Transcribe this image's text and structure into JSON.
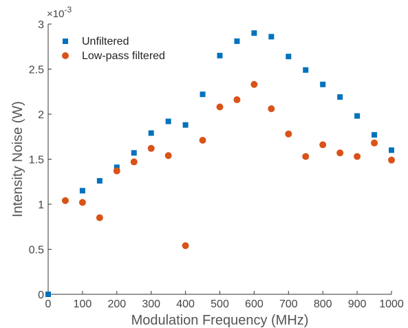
{
  "chart_data": {
    "type": "scatter",
    "xlabel": "Modulation Frequency (MHz)",
    "ylabel": "Intensity Noise (W)",
    "xlim": [
      0,
      1000
    ],
    "ylim": [
      0,
      3
    ],
    "y_exponent_label": "×10",
    "y_exponent_power": "-3",
    "x_ticks": [
      0,
      100,
      200,
      300,
      400,
      500,
      600,
      700,
      800,
      900,
      1000
    ],
    "x_tick_labels": [
      "0",
      "100",
      "200",
      "300",
      "400",
      "500",
      "600",
      "700",
      "800",
      "900",
      "1000"
    ],
    "y_ticks": [
      0,
      0.5,
      1,
      1.5,
      2,
      2.5,
      3
    ],
    "y_tick_labels": [
      "0",
      "0.5",
      "1",
      "1.5",
      "2",
      "2.5",
      "3"
    ],
    "grid": false,
    "legend_position": "top-left",
    "series": [
      {
        "name": "Unfiltered",
        "marker": "square",
        "color": "#0072BD",
        "x": [
          0,
          100,
          150,
          200,
          250,
          300,
          350,
          400,
          450,
          500,
          550,
          600,
          650,
          700,
          750,
          800,
          850,
          900,
          950,
          1000
        ],
        "y": [
          0.0,
          1.15,
          1.26,
          1.41,
          1.57,
          1.79,
          1.92,
          1.88,
          2.22,
          2.65,
          2.81,
          2.9,
          2.86,
          2.64,
          2.49,
          2.33,
          2.19,
          1.98,
          1.77,
          1.6
        ]
      },
      {
        "name": "Low-pass filtered",
        "marker": "circle",
        "color": "#D95319",
        "x": [
          50,
          100,
          150,
          200,
          250,
          300,
          350,
          400,
          450,
          500,
          550,
          600,
          650,
          700,
          750,
          800,
          850,
          900,
          950,
          1000
        ],
        "y": [
          1.04,
          1.02,
          0.85,
          1.37,
          1.47,
          1.62,
          1.54,
          0.54,
          1.71,
          2.08,
          2.16,
          2.33,
          2.06,
          1.78,
          1.53,
          1.66,
          1.57,
          1.53,
          1.68,
          1.49
        ]
      }
    ]
  }
}
